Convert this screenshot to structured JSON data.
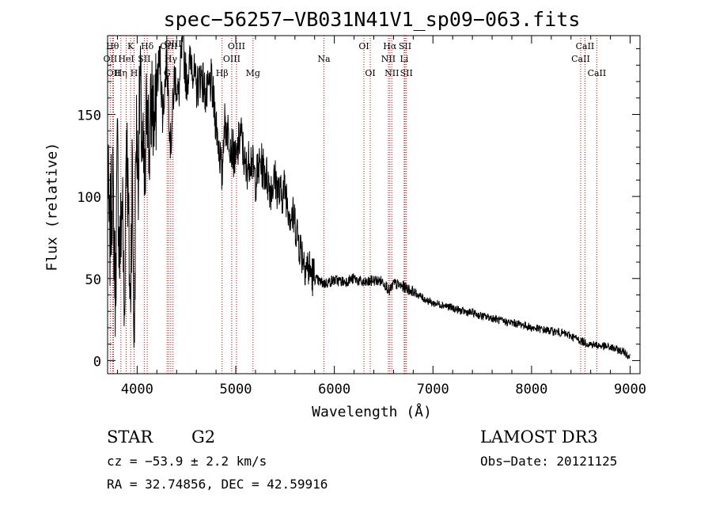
{
  "chart_data": {
    "type": "line",
    "title": "spec−56257−VB031N41V1_sp09−063.fits",
    "xlabel": "Wavelength (Å)",
    "ylabel": "Flux (relative)",
    "xlim": [
      3700,
      9100
    ],
    "ylim": [
      -8,
      198
    ],
    "xticks": [
      4000,
      5000,
      6000,
      7000,
      8000,
      9000
    ],
    "yticks": [
      0,
      50,
      100,
      150
    ],
    "grid": false,
    "series": [
      {
        "name": "spectrum",
        "x": [
          3700,
          3720,
          3750,
          3780,
          3800,
          3820,
          3850,
          3870,
          3890,
          3910,
          3930,
          3950,
          3970,
          3990,
          4010,
          4030,
          4050,
          4080,
          4100,
          4120,
          4150,
          4180,
          4200,
          4230,
          4260,
          4300,
          4340,
          4380,
          4420,
          4460,
          4500,
          4550,
          4600,
          4650,
          4700,
          4750,
          4800,
          4850,
          4861,
          4880,
          4920,
          4960,
          5000,
          5050,
          5100,
          5150,
          5200,
          5250,
          5300,
          5350,
          5400,
          5450,
          5500,
          5550,
          5600,
          5650,
          5700,
          5750,
          5800,
          5850,
          5900,
          6000,
          6100,
          6200,
          6300,
          6400,
          6500,
          6563,
          6600,
          6700,
          6800,
          6900,
          7000,
          7100,
          7200,
          7300,
          7400,
          7500,
          7600,
          7700,
          7800,
          7900,
          8000,
          8100,
          8200,
          8300,
          8400,
          8500,
          8542,
          8600,
          8700,
          8800,
          8900,
          8950,
          9000
        ],
        "values": [
          120,
          70,
          110,
          40,
          130,
          60,
          100,
          20,
          150,
          90,
          30,
          120,
          5,
          145,
          115,
          170,
          130,
          100,
          175,
          125,
          160,
          140,
          170,
          185,
          150,
          185,
          130,
          175,
          160,
          195,
          170,
          185,
          165,
          175,
          160,
          170,
          145,
          120,
          110,
          145,
          140,
          130,
          120,
          140,
          115,
          125,
          110,
          120,
          115,
          105,
          110,
          100,
          105,
          90,
          85,
          70,
          60,
          55,
          50,
          48,
          47,
          49,
          48,
          50,
          47,
          49,
          48,
          42,
          47,
          45,
          42,
          38,
          35,
          34,
          32,
          30,
          29,
          27,
          26,
          24,
          23,
          22,
          20,
          19,
          18,
          17,
          15,
          12,
          11,
          10,
          9,
          8,
          6,
          5,
          2
        ]
      }
    ],
    "lines": [
      {
        "label": "OII",
        "x": 3727,
        "row": 2
      },
      {
        "label": "Hθ",
        "x": 3750,
        "row": 1
      },
      {
        "label": "OII",
        "x": 3760,
        "row": 3
      },
      {
        "label": "Hη",
        "x": 3835,
        "row": 3
      },
      {
        "label": "HeI",
        "x": 3889,
        "row": 2
      },
      {
        "label": "K",
        "x": 3934,
        "row": 1
      },
      {
        "label": "H",
        "x": 3969,
        "row": 3
      },
      {
        "label": "SII",
        "x": 4072,
        "row": 2
      },
      {
        "label": "Hδ",
        "x": 4102,
        "row": 1
      },
      {
        "label": "OIII",
        "x": 4320,
        "row": 1
      },
      {
        "label": "Hγ",
        "x": 4341,
        "row": 2
      },
      {
        "label": "G",
        "x": 4304,
        "row": 3
      },
      {
        "label": "OIII",
        "x": 4363,
        "row": 0
      },
      {
        "label": "Hβ",
        "x": 4861,
        "row": 3
      },
      {
        "label": "OIII",
        "x": 4959,
        "row": 2
      },
      {
        "label": "OIII",
        "x": 5007,
        "row": 1
      },
      {
        "label": "Mg",
        "x": 5175,
        "row": 3
      },
      {
        "label": "Na",
        "x": 5894,
        "row": 2
      },
      {
        "label": "OI",
        "x": 6300,
        "row": 1
      },
      {
        "label": "OI",
        "x": 6364,
        "row": 3
      },
      {
        "label": "NII",
        "x": 6548,
        "row": 2
      },
      {
        "label": "Hα",
        "x": 6563,
        "row": 1
      },
      {
        "label": "NII",
        "x": 6583,
        "row": 3
      },
      {
        "label": "Li",
        "x": 6708,
        "row": 2
      },
      {
        "label": "SII",
        "x": 6717,
        "row": 1
      },
      {
        "label": "SII",
        "x": 6731,
        "row": 3
      },
      {
        "label": "CaII",
        "x": 8498,
        "row": 2
      },
      {
        "label": "CaII",
        "x": 8542,
        "row": 1
      },
      {
        "label": "CaII",
        "x": 8662,
        "row": 3
      }
    ]
  },
  "info": {
    "class_label": "STAR",
    "subclass": "G2",
    "survey": "LAMOST DR3",
    "cz": "cz = −53.9 ± 2.2 km/s",
    "obs_date": "Obs−Date: 20121125",
    "coords": "RA =  32.74856, DEC =  42.59916"
  }
}
